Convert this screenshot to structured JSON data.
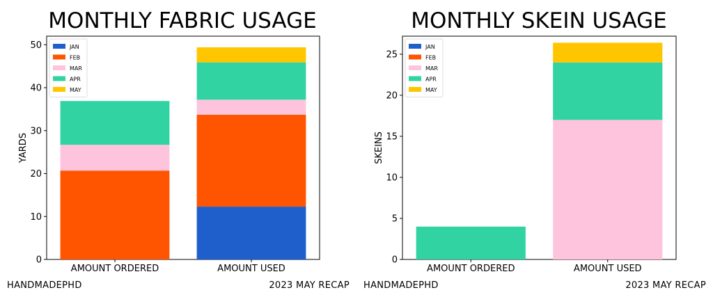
{
  "charts": [
    {
      "type": "bar",
      "stacked": true,
      "title": "MONTHLY FABRIC USAGE",
      "xlabel": "",
      "ylabel": "YARDS",
      "ylim": [
        0,
        52
      ],
      "yticks": [
        0,
        10,
        20,
        30,
        40,
        50
      ],
      "grid": false,
      "legend_position": "top-left",
      "categories": [
        "AMOUNT ORDERED",
        "AMOUNT USED"
      ],
      "series": [
        {
          "name": "JAN",
          "color": "#1f5fcc",
          "values": [
            0,
            12.3
          ]
        },
        {
          "name": "FEB",
          "color": "#ff5500",
          "values": [
            20.7,
            21.4
          ]
        },
        {
          "name": "MAR",
          "color": "#ffc4dd",
          "values": [
            6.0,
            3.5
          ]
        },
        {
          "name": "APR",
          "color": "#32d3a2",
          "values": [
            10.2,
            8.7
          ]
        },
        {
          "name": "MAY",
          "color": "#ffc600",
          "values": [
            0,
            3.5
          ]
        }
      ]
    },
    {
      "type": "bar",
      "stacked": true,
      "title": "MONTHLY SKEIN USAGE",
      "xlabel": "",
      "ylabel": "SKEINS",
      "ylim": [
        0,
        27.2
      ],
      "yticks": [
        0,
        5,
        10,
        15,
        20,
        25
      ],
      "grid": false,
      "legend_position": "top-left",
      "categories": [
        "AMOUNT ORDERED",
        "AMOUNT USED"
      ],
      "series": [
        {
          "name": "JAN",
          "color": "#1f5fcc",
          "values": [
            0,
            0
          ]
        },
        {
          "name": "FEB",
          "color": "#ff5500",
          "values": [
            0,
            0
          ]
        },
        {
          "name": "MAR",
          "color": "#ffc4dd",
          "values": [
            0,
            17
          ]
        },
        {
          "name": "APR",
          "color": "#32d3a2",
          "values": [
            4,
            7
          ]
        },
        {
          "name": "MAY",
          "color": "#ffc600",
          "values": [
            0,
            2.4
          ]
        }
      ]
    }
  ],
  "footer": {
    "credit_left": "HANDMADEPHD",
    "recap_left": "2023 MAY RECAP",
    "credit_right": "HANDMADEPHD",
    "recap_right": "2023 MAY RECAP"
  }
}
